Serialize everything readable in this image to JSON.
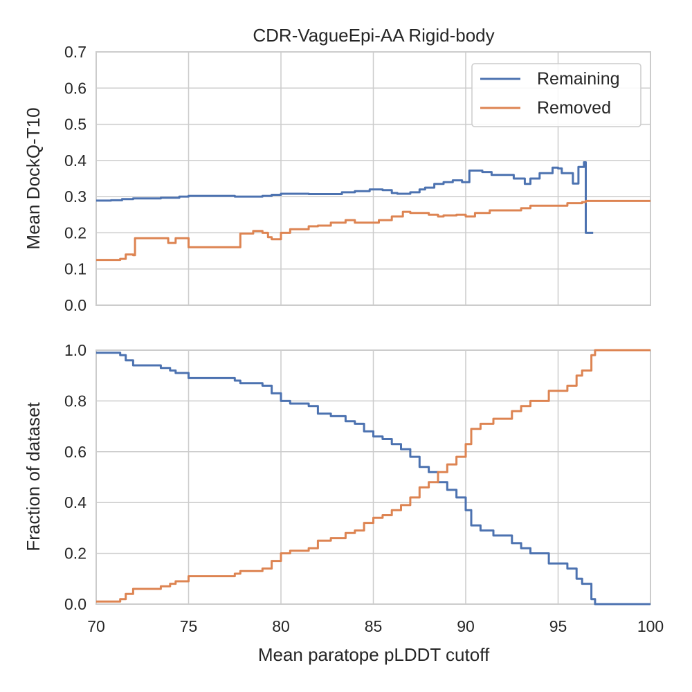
{
  "figure": {
    "title": "CDR-VagueEpi-AA Rigid-body",
    "colors": {
      "Remaining": "#4c72b0",
      "Removed": "#dd8452"
    }
  },
  "chart_data": [
    {
      "type": "line",
      "title": "CDR-VagueEpi-AA Rigid-body",
      "xlabel": "",
      "ylabel": "Mean DockQ-T10",
      "xlim": [
        70,
        100
      ],
      "ylim": [
        0,
        0.7
      ],
      "xticks": [
        "70",
        "75",
        "80",
        "85",
        "90",
        "95",
        "100"
      ],
      "yticks": [
        "0.0",
        "0.1",
        "0.2",
        "0.3",
        "0.4",
        "0.5",
        "0.6",
        "0.7"
      ],
      "grid": true,
      "legend": {
        "position": "top-right",
        "entries": [
          "Remaining",
          "Removed"
        ]
      },
      "series": [
        {
          "name": "Remaining",
          "color": "#4c72b0",
          "x": [
            70,
            70.8,
            71.4,
            72,
            73.5,
            74.5,
            75,
            77.5,
            79,
            79.5,
            80,
            81.5,
            83.3,
            84,
            84.8,
            85.5,
            86,
            86.3,
            87,
            87.5,
            87.8,
            88.3,
            88.8,
            89.3,
            89.8,
            90.2,
            90.9,
            91.4,
            92.3,
            92.6,
            93.2,
            93.5,
            94,
            94.7,
            95,
            95.2,
            95.8,
            96.1,
            96.4,
            96.5,
            96.9
          ],
          "y": [
            0.289,
            0.29,
            0.293,
            0.295,
            0.297,
            0.3,
            0.302,
            0.3,
            0.302,
            0.305,
            0.308,
            0.307,
            0.312,
            0.315,
            0.32,
            0.318,
            0.31,
            0.308,
            0.312,
            0.32,
            0.325,
            0.335,
            0.34,
            0.345,
            0.34,
            0.372,
            0.368,
            0.36,
            0.36,
            0.35,
            0.335,
            0.35,
            0.365,
            0.38,
            0.378,
            0.365,
            0.336,
            0.382,
            0.395,
            0.2,
            0.2
          ]
        },
        {
          "name": "Removed",
          "color": "#dd8452",
          "x": [
            70,
            71.3,
            71.6,
            72,
            72.1,
            73.5,
            73.9,
            74.3,
            75,
            77.5,
            77.8,
            78.5,
            79,
            79.3,
            79.5,
            80,
            80.5,
            81.5,
            82,
            82.7,
            83.5,
            84,
            85,
            85.3,
            86,
            86.6,
            87,
            87.5,
            88,
            88.5,
            88.8,
            89.5,
            90,
            90.5,
            91.3,
            92.5,
            93,
            93.5,
            94.5,
            95.5,
            96.3,
            96.5,
            97,
            100
          ],
          "y": [
            0.125,
            0.128,
            0.14,
            0.138,
            0.185,
            0.185,
            0.172,
            0.185,
            0.16,
            0.16,
            0.198,
            0.205,
            0.2,
            0.188,
            0.182,
            0.2,
            0.21,
            0.218,
            0.22,
            0.228,
            0.235,
            0.228,
            0.228,
            0.235,
            0.245,
            0.258,
            0.255,
            0.255,
            0.25,
            0.245,
            0.248,
            0.25,
            0.245,
            0.255,
            0.262,
            0.262,
            0.268,
            0.275,
            0.275,
            0.282,
            0.285,
            0.288,
            0.288,
            0.288
          ]
        }
      ]
    },
    {
      "type": "line",
      "title": "",
      "xlabel": "Mean paratope pLDDT cutoff",
      "ylabel": "Fraction of dataset",
      "xlim": [
        70,
        100
      ],
      "ylim": [
        0,
        1
      ],
      "xticks": [
        "70",
        "75",
        "80",
        "85",
        "90",
        "95",
        "100"
      ],
      "yticks": [
        "0.0",
        "0.2",
        "0.4",
        "0.6",
        "0.8",
        "1.0"
      ],
      "grid": true,
      "series": [
        {
          "name": "Remaining",
          "color": "#4c72b0",
          "x": [
            70,
            71.3,
            71.6,
            72,
            73.5,
            74,
            74.3,
            75,
            77.5,
            77.8,
            78.5,
            79,
            79.5,
            80,
            80.5,
            81.5,
            82,
            82.7,
            83.5,
            84,
            84.5,
            85,
            85.5,
            86,
            86.5,
            87,
            87.5,
            88,
            88.5,
            89,
            89.5,
            90,
            90.3,
            90.8,
            91.5,
            92.5,
            93,
            93.5,
            94.5,
            95.5,
            96,
            96.3,
            96.8,
            97,
            100
          ],
          "y": [
            0.99,
            0.98,
            0.96,
            0.94,
            0.93,
            0.92,
            0.91,
            0.89,
            0.88,
            0.87,
            0.87,
            0.86,
            0.83,
            0.8,
            0.79,
            0.78,
            0.75,
            0.74,
            0.72,
            0.71,
            0.68,
            0.66,
            0.65,
            0.63,
            0.61,
            0.58,
            0.54,
            0.52,
            0.48,
            0.45,
            0.42,
            0.37,
            0.31,
            0.29,
            0.27,
            0.24,
            0.22,
            0.2,
            0.16,
            0.14,
            0.1,
            0.08,
            0.02,
            0.0,
            0.0
          ]
        },
        {
          "name": "Removed",
          "color": "#dd8452",
          "x": [
            70,
            71.3,
            71.6,
            72,
            73.5,
            74,
            74.3,
            75,
            77.5,
            77.8,
            78.5,
            79,
            79.5,
            80,
            80.5,
            81.5,
            82,
            82.7,
            83.5,
            84,
            84.5,
            85,
            85.5,
            86,
            86.5,
            87,
            87.5,
            88,
            88.5,
            89,
            89.5,
            90,
            90.3,
            90.8,
            91.5,
            92.5,
            93,
            93.5,
            94.5,
            95.5,
            96,
            96.3,
            96.8,
            97,
            100
          ],
          "y": [
            0.01,
            0.02,
            0.04,
            0.06,
            0.07,
            0.08,
            0.09,
            0.11,
            0.12,
            0.13,
            0.13,
            0.14,
            0.17,
            0.2,
            0.21,
            0.22,
            0.25,
            0.26,
            0.28,
            0.29,
            0.32,
            0.34,
            0.35,
            0.37,
            0.39,
            0.42,
            0.46,
            0.48,
            0.52,
            0.55,
            0.58,
            0.63,
            0.69,
            0.71,
            0.73,
            0.76,
            0.78,
            0.8,
            0.84,
            0.86,
            0.9,
            0.92,
            0.98,
            1.0,
            1.0
          ]
        }
      ]
    }
  ]
}
